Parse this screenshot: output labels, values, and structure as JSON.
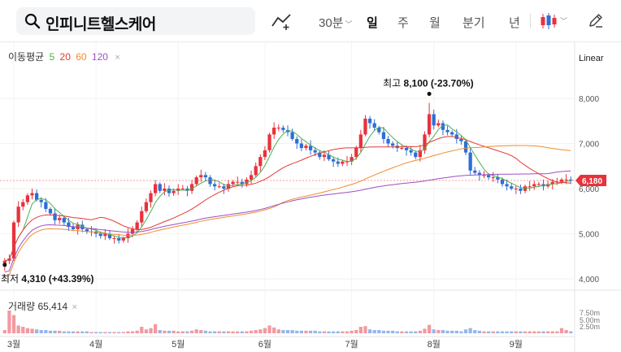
{
  "search": {
    "query": "인피니트헬스케어"
  },
  "toolbar": {
    "periods": [
      "30분",
      "일",
      "주",
      "월",
      "분기",
      "년"
    ],
    "active_period": "일",
    "chart_style_icon": "candlestick-icon",
    "draw_icon": "trendline-tool-icon",
    "edit_icon": "pencil-icon"
  },
  "legend": {
    "title": "이동평균",
    "ma": [
      "5",
      "20",
      "60",
      "120"
    ],
    "close": "×"
  },
  "scale": "Linear",
  "volume": {
    "label": "거래량",
    "value": "65,414"
  },
  "colors": {
    "up": "#e8323c",
    "down": "#2d6ed8",
    "ma5": "#4caf50",
    "ma20": "#e53935",
    "ma60": "#f08c2e",
    "ma120": "#9c4fc7",
    "current_price_tag": "#e8323c"
  },
  "chart_data": {
    "type": "candlestick",
    "x_ticks": [
      "3월",
      "4월",
      "5월",
      "6월",
      "7월",
      "8월",
      "9월"
    ],
    "y_ticks": [
      4000,
      5000,
      6000,
      7000,
      8000
    ],
    "ylim": [
      3750,
      8500
    ],
    "volume_ticks": [
      "7.50m",
      "5.00m",
      "2.50m"
    ],
    "current_price": 6180,
    "current_price_label": "6,180",
    "annotations": {
      "high": {
        "label": "최고",
        "value": "8,100",
        "change": "(-23.70%)",
        "price": 8100
      },
      "low": {
        "label": "최저",
        "value": "4,310",
        "change": "(+43.39%)",
        "price": 4310
      }
    },
    "closes": [
      4400,
      4450,
      5250,
      5600,
      5700,
      5850,
      5900,
      5750,
      5700,
      5550,
      5450,
      5300,
      5350,
      5250,
      5150,
      5100,
      5200,
      5100,
      5050,
      5050,
      5000,
      4950,
      5000,
      4900,
      4900,
      4850,
      4900,
      5000,
      5100,
      5250,
      5500,
      5700,
      5900,
      6100,
      5950,
      6000,
      5900,
      5950,
      6000,
      6000,
      5950,
      6100,
      6250,
      6300,
      6250,
      6100,
      6050,
      6050,
      6000,
      6100,
      6150,
      6150,
      6100,
      6200,
      6300,
      6500,
      6700,
      6850,
      7200,
      7350,
      7350,
      7300,
      7250,
      7100,
      7000,
      6900,
      6950,
      6850,
      6800,
      6700,
      6750,
      6650,
      6600,
      6550,
      6600,
      6600,
      6700,
      6900,
      7200,
      7550,
      7450,
      7350,
      7250,
      7100,
      7000,
      6950,
      6900,
      6900,
      6850,
      6800,
      6700,
      6850,
      7200,
      7650,
      7400,
      7450,
      7300,
      7250,
      7200,
      7100,
      7050,
      6800,
      6400,
      6350,
      6300,
      6300,
      6250,
      6250,
      6200,
      6100,
      6050,
      6000,
      6000,
      5950,
      6050,
      6050,
      6100,
      6100,
      6050,
      6100,
      6150,
      6150,
      6200,
      6200,
      6180
    ],
    "volume": [
      0.5,
      3.5,
      2.8,
      1.2,
      1.0,
      0.8,
      0.7,
      0.6,
      0.5,
      0.5,
      0.4,
      0.4,
      0.4,
      0.3,
      0.3,
      0.3,
      0.3,
      0.3,
      0.3,
      0.2,
      0.2,
      0.2,
      0.2,
      0.2,
      0.2,
      0.2,
      0.2,
      0.3,
      0.3,
      0.4,
      1.0,
      0.6,
      0.8,
      1.4,
      0.5,
      0.4,
      0.4,
      0.4,
      0.3,
      0.3,
      0.3,
      0.4,
      0.6,
      0.5,
      0.4,
      0.3,
      0.3,
      0.3,
      0.3,
      0.3,
      0.3,
      0.3,
      0.3,
      0.3,
      0.4,
      0.5,
      0.6,
      0.8,
      1.2,
      0.9,
      0.6,
      0.5,
      0.5,
      0.5,
      0.4,
      0.4,
      0.4,
      0.4,
      0.4,
      0.3,
      0.3,
      0.3,
      0.3,
      0.3,
      0.3,
      0.3,
      0.4,
      0.5,
      1.0,
      1.1,
      0.6,
      0.5,
      0.5,
      0.4,
      0.4,
      0.4,
      0.3,
      0.3,
      0.3,
      0.3,
      0.3,
      0.4,
      0.7,
      1.3,
      0.6,
      0.5,
      0.5,
      0.4,
      0.4,
      0.4,
      0.3,
      0.6,
      0.8,
      0.5,
      0.4,
      0.3,
      0.3,
      0.3,
      0.3,
      0.3,
      0.3,
      0.3,
      0.3,
      0.3,
      0.3,
      0.3,
      0.3,
      0.3,
      0.3,
      0.3,
      0.3,
      0.3,
      0.8,
      0.5,
      0.3
    ]
  }
}
